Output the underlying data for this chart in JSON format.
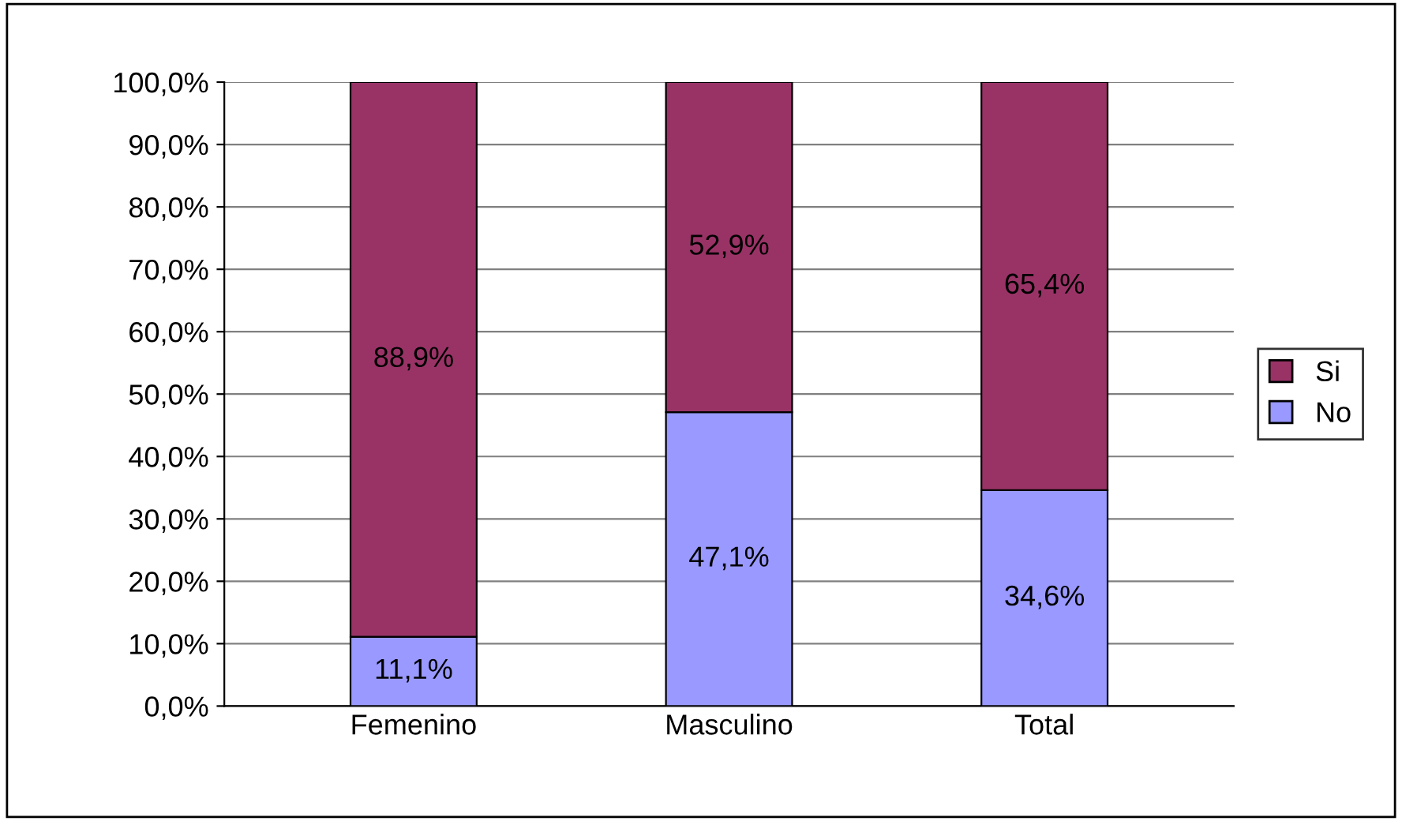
{
  "chart_data": {
    "type": "bar",
    "stacked": true,
    "categories": [
      "Femenino",
      "Masculino",
      "Total"
    ],
    "series": [
      {
        "name": "No",
        "color": "#9999ff",
        "values": [
          11.1,
          47.1,
          34.6
        ],
        "value_labels": [
          "11,1%",
          "47,1%",
          "34,6%"
        ]
      },
      {
        "name": "Si",
        "color": "#993366",
        "values": [
          88.9,
          52.9,
          65.4
        ],
        "value_labels": [
          "88,9%",
          "52,9%",
          "65,4%"
        ]
      }
    ],
    "ylim": [
      0,
      100
    ],
    "yticks": [
      {
        "value": 0,
        "label": "0,0%"
      },
      {
        "value": 10,
        "label": "10,0%"
      },
      {
        "value": 20,
        "label": "20,0%"
      },
      {
        "value": 30,
        "label": "30,0%"
      },
      {
        "value": 40,
        "label": "40,0%"
      },
      {
        "value": 50,
        "label": "50,0%"
      },
      {
        "value": 60,
        "label": "60,0%"
      },
      {
        "value": 70,
        "label": "70,0%"
      },
      {
        "value": 80,
        "label": "80,0%"
      },
      {
        "value": 90,
        "label": "90,0%"
      },
      {
        "value": 100,
        "label": "100,0%"
      }
    ],
    "grid": "y",
    "legend": "right"
  }
}
